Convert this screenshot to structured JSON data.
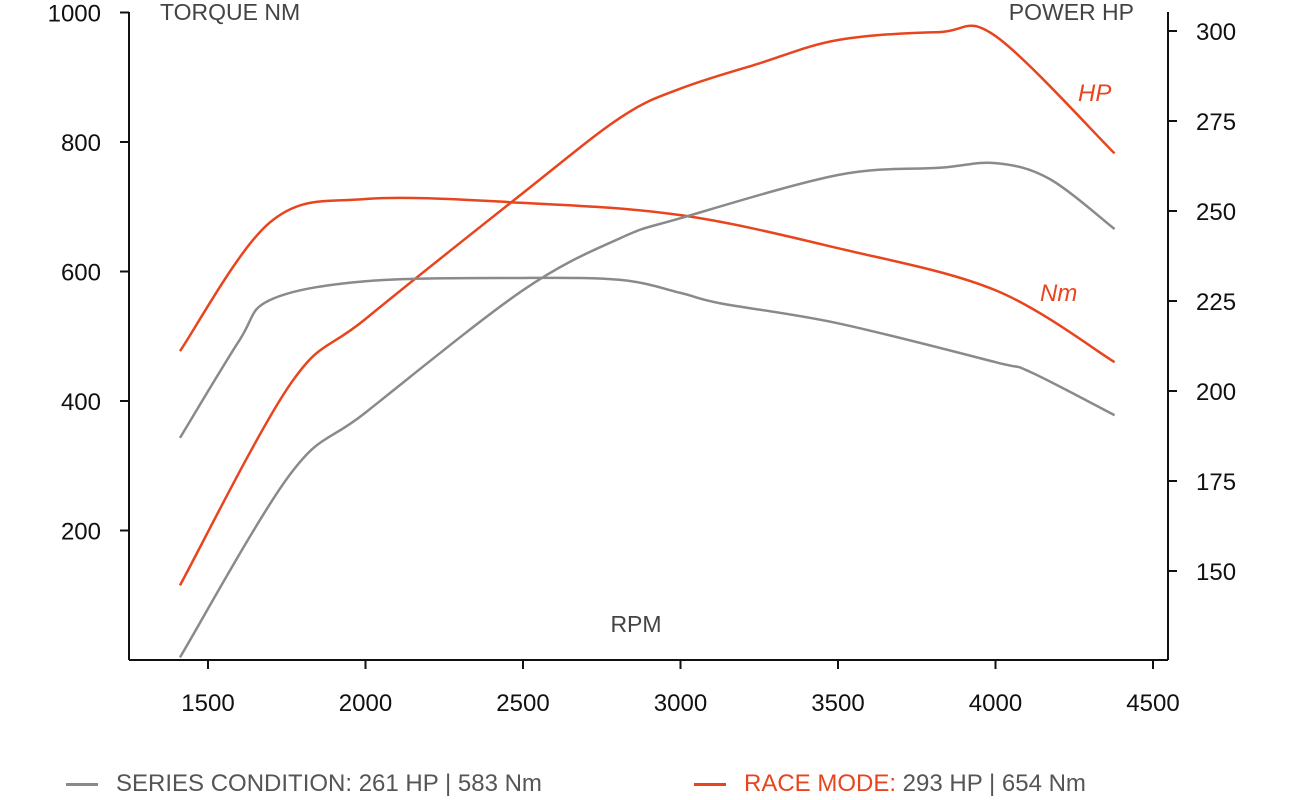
{
  "chart_data": {
    "type": "line",
    "xlabel": "RPM",
    "ylabel_left": "TORQUE NM",
    "ylabel_right": "POWER HP",
    "xlim": [
      1250,
      4550
    ],
    "ylim_left": [
      0,
      1000
    ],
    "ylim_right": [
      117,
      305
    ],
    "x_ticks": [
      1500,
      2000,
      2500,
      3000,
      3500,
      4000,
      4500
    ],
    "y_left_ticks": [
      200,
      400,
      600,
      800,
      1000
    ],
    "y_right_ticks": [
      150,
      175,
      200,
      225,
      250,
      275,
      300
    ],
    "grid": false,
    "colors": {
      "series": "#8a8a8a",
      "race": "#e8451e"
    },
    "series": [
      {
        "name": "RACE MODE HP",
        "axis": "right",
        "color": "#e8451e",
        "label": "HP",
        "points": [
          [
            1411,
            146
          ],
          [
            1762,
            202
          ],
          [
            2000,
            220
          ],
          [
            2500,
            255
          ],
          [
            2810,
            276
          ],
          [
            3000,
            284
          ],
          [
            3250,
            291
          ],
          [
            3500,
            297.5
          ],
          [
            3822,
            299.7
          ],
          [
            4000,
            298.6
          ],
          [
            4378,
            266
          ]
        ]
      },
      {
        "name": "RACE MODE Nm",
        "axis": "left",
        "color": "#e8451e",
        "label": "Nm",
        "points": [
          [
            1411,
            477
          ],
          [
            1697,
            676
          ],
          [
            2000,
            712
          ],
          [
            2500,
            706
          ],
          [
            3000,
            687
          ],
          [
            3500,
            636
          ],
          [
            4000,
            571
          ],
          [
            4378,
            460
          ]
        ]
      },
      {
        "name": "SERIES CONDITION HP",
        "axis": "right",
        "color": "#8a8a8a",
        "points": [
          [
            1411,
            126
          ],
          [
            1762,
            177
          ],
          [
            2000,
            194
          ],
          [
            2500,
            228
          ],
          [
            2810,
            242.5
          ],
          [
            3000,
            248
          ],
          [
            3500,
            260
          ],
          [
            3822,
            262
          ],
          [
            4000,
            263.3
          ],
          [
            4170,
            259
          ],
          [
            4378,
            245
          ]
        ]
      },
      {
        "name": "SERIES CONDITION Nm",
        "axis": "left",
        "color": "#8a8a8a",
        "points": [
          [
            1411,
            343
          ],
          [
            1600,
            494
          ],
          [
            1697,
            556
          ],
          [
            2000,
            585
          ],
          [
            2500,
            590
          ],
          [
            2810,
            587
          ],
          [
            3000,
            567
          ],
          [
            3125,
            551
          ],
          [
            3500,
            520
          ],
          [
            4000,
            460
          ],
          [
            4110,
            445
          ],
          [
            4378,
            378
          ]
        ]
      }
    ],
    "legend": {
      "placement": "bottom",
      "series": {
        "label": "SERIES CONDITION:",
        "value": " 261 HP | 583 Nm"
      },
      "race": {
        "label": "RACE MODE:",
        "value": " 293 HP | 654 Nm"
      }
    }
  }
}
